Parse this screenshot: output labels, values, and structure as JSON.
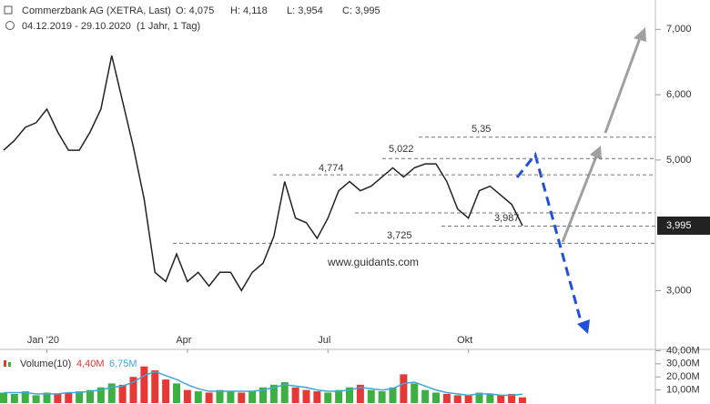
{
  "header": {
    "title": "Commerzbank AG (XETRA, Last)",
    "open": "O: 4,075",
    "high": "H: 4,118",
    "low": "L: 3,954",
    "close": "C: 3,995",
    "range": "04.12.2019 - 29.10.2020",
    "period": "(1 Jahr, 1 Tag)"
  },
  "watermark": "www.guidants.com",
  "chart_data": [
    {
      "type": "line",
      "color": "#222222",
      "categories": [
        null,
        null,
        null,
        null,
        "Jan '20",
        null,
        null,
        null,
        null,
        null,
        null,
        null,
        null,
        null,
        null,
        null,
        null,
        "Apr",
        null,
        null,
        null,
        null,
        null,
        null,
        null,
        null,
        null,
        null,
        null,
        null,
        "Jul",
        null,
        null,
        null,
        null,
        null,
        null,
        null,
        null,
        null,
        null,
        null,
        null,
        "Okt",
        null,
        null,
        null,
        null,
        null
      ],
      "values": [
        5.15,
        5.3,
        5.5,
        5.57,
        5.78,
        5.43,
        5.15,
        5.15,
        5.43,
        5.78,
        6.6,
        5.9,
        5.2,
        4.4,
        3.28,
        3.14,
        3.56,
        3.14,
        3.28,
        3.07,
        3.28,
        3.28,
        3.0,
        3.28,
        3.42,
        3.83,
        4.67,
        4.11,
        4.04,
        3.8,
        4.11,
        4.53,
        4.67,
        4.53,
        4.6,
        4.74,
        4.88,
        4.74,
        4.88,
        4.94,
        4.94,
        4.67,
        4.25,
        4.11,
        4.53,
        4.6,
        4.46,
        4.32,
        3.995
      ],
      "ylim": [
        2.1,
        7.45
      ],
      "yticks": [
        {
          "value": 3,
          "label": "3,000"
        },
        {
          "value": 5,
          "label": "5,000"
        },
        {
          "value": 6,
          "label": "6,000"
        },
        {
          "value": 7,
          "label": "7,000"
        }
      ],
      "last_value": {
        "value": 3.995,
        "label": "3,995"
      },
      "levels": [
        {
          "value": 5.35,
          "label": "5,35"
        },
        {
          "value": 5.022,
          "label": "5,022"
        },
        {
          "value": 4.774,
          "label": "4,774"
        },
        {
          "value": 4.19,
          "label": null
        },
        {
          "value": 3.987,
          "label": "3,987"
        },
        {
          "value": 3.725,
          "label": "3,725"
        }
      ]
    },
    {
      "type": "bar",
      "title": "Volume(10)",
      "value_text": "4,40M",
      "avg_text": "6,75M",
      "up_color": "#3cb043",
      "down_color": "#e53935",
      "avg_color": "#3fa7d6",
      "values": [
        8,
        7,
        9,
        6,
        8,
        7,
        8,
        9,
        10,
        12,
        15,
        14,
        20,
        28,
        25,
        18,
        15,
        10,
        9,
        8,
        10,
        9,
        8,
        9,
        12,
        14,
        16,
        12,
        10,
        9,
        8,
        10,
        12,
        14,
        10,
        9,
        12,
        22,
        15,
        10,
        8,
        7,
        6,
        6,
        8,
        7,
        6,
        7,
        4.4
      ],
      "avg_values": [
        8,
        8,
        8,
        7,
        7,
        7,
        8,
        8,
        9,
        10,
        12,
        13,
        16,
        21,
        24,
        21,
        18,
        14,
        11,
        9,
        9,
        9,
        9,
        9,
        10,
        12,
        14,
        13,
        12,
        10,
        9,
        9,
        10,
        12,
        11,
        10,
        11,
        15,
        16,
        13,
        10,
        8,
        7,
        6,
        7,
        7,
        6,
        6,
        6.75
      ],
      "ylim": [
        0,
        41
      ],
      "yticks": [
        {
          "value": 10,
          "label": "10,00M"
        },
        {
          "value": 20,
          "label": "20,00M"
        },
        {
          "value": 30,
          "label": "30,00M"
        },
        {
          "value": 40,
          "label": "40,00M"
        }
      ]
    }
  ]
}
